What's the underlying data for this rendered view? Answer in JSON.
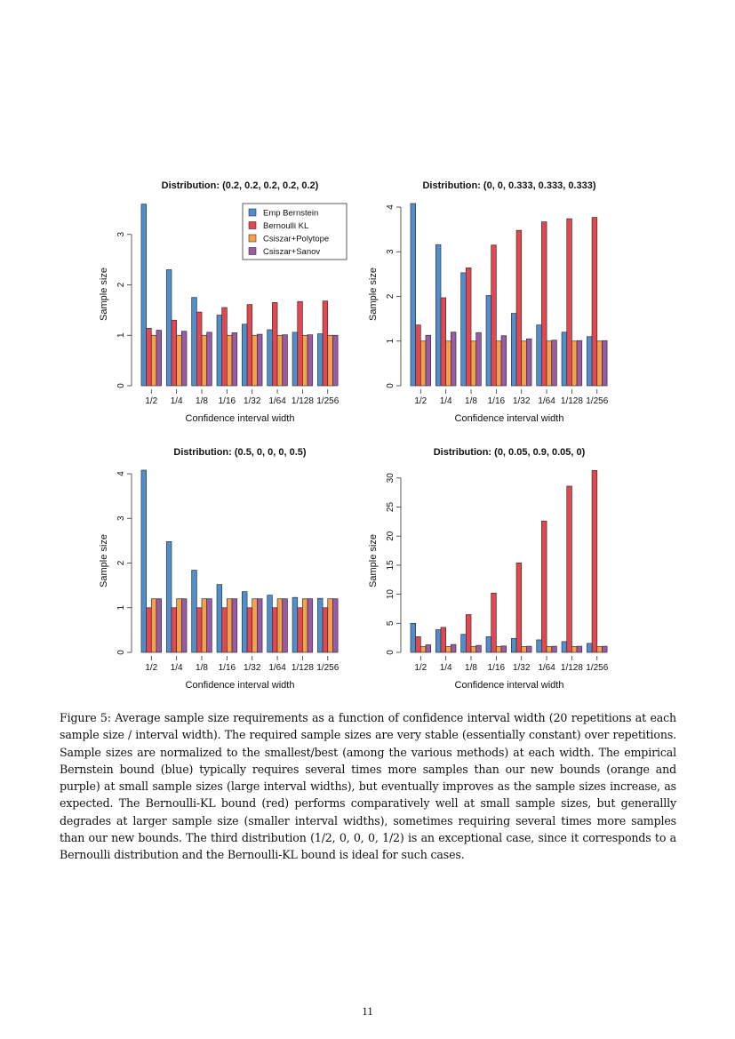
{
  "colors": {
    "Emp Bernstein": "#4f8fce",
    "Bernoulli KL": "#e4474f",
    "Csiszar+Polytope": "#f5a04a",
    "Csiszar+Sanov": "#9a5aa6"
  },
  "chart_data": [
    {
      "type": "bar",
      "title": "Distribution: (0.2, 0.2, 0.2, 0.2, 0.2)",
      "xlabel": "Confidence interval width",
      "ylabel": "Sample size",
      "categories": [
        "1/2",
        "1/4",
        "1/8",
        "1/16",
        "1/32",
        "1/64",
        "1/128",
        "1/256"
      ],
      "yticks": [
        0,
        1,
        2,
        3
      ],
      "ylim": [
        0,
        3.63
      ],
      "legend": "top-right",
      "series": [
        {
          "name": "Emp Bernstein",
          "values": [
            3.6,
            2.3,
            1.75,
            1.4,
            1.22,
            1.11,
            1.06,
            1.03
          ]
        },
        {
          "name": "Bernoulli KL",
          "values": [
            1.14,
            1.3,
            1.46,
            1.55,
            1.61,
            1.65,
            1.67,
            1.68
          ]
        },
        {
          "name": "Csiszar+Polytope",
          "values": [
            1,
            1,
            1,
            1,
            1,
            1,
            1,
            1
          ]
        },
        {
          "name": "Csiszar+Sanov",
          "values": [
            1.1,
            1.08,
            1.06,
            1.05,
            1.02,
            1.01,
            1.01,
            1.0
          ]
        }
      ]
    },
    {
      "type": "bar",
      "title": "Distribution: (0, 0, 0.333, 0.333, 0.333)",
      "xlabel": "Confidence interval width",
      "ylabel": "Sample size",
      "categories": [
        "1/2",
        "1/4",
        "1/8",
        "1/16",
        "1/32",
        "1/64",
        "1/128",
        "1/256"
      ],
      "yticks": [
        0,
        1,
        2,
        3,
        4
      ],
      "ylim": [
        0,
        4.1
      ],
      "series": [
        {
          "name": "Emp Bernstein",
          "values": [
            4.08,
            3.16,
            2.53,
            2.02,
            1.62,
            1.36,
            1.2,
            1.1
          ]
        },
        {
          "name": "Bernoulli KL",
          "values": [
            1.36,
            1.97,
            2.64,
            3.15,
            3.48,
            3.67,
            3.74,
            3.77
          ]
        },
        {
          "name": "Csiszar+Polytope",
          "values": [
            1,
            1,
            1,
            1,
            1,
            1,
            1,
            1
          ]
        },
        {
          "name": "Csiszar+Sanov",
          "values": [
            1.13,
            1.2,
            1.19,
            1.12,
            1.05,
            1.02,
            1.01,
            1.01
          ]
        }
      ]
    },
    {
      "type": "bar",
      "title": "Distribution: (0.5, 0, 0, 0, 0.5)",
      "xlabel": "Confidence interval width",
      "ylabel": "Sample size",
      "categories": [
        "1/2",
        "1/4",
        "1/8",
        "1/16",
        "1/32",
        "1/64",
        "1/128",
        "1/256"
      ],
      "yticks": [
        0,
        1,
        2,
        3,
        4
      ],
      "ylim": [
        0,
        4.1
      ],
      "series": [
        {
          "name": "Emp Bernstein",
          "values": [
            4.08,
            2.48,
            1.84,
            1.52,
            1.36,
            1.28,
            1.23,
            1.21
          ]
        },
        {
          "name": "Bernoulli KL",
          "values": [
            1,
            1,
            1,
            1,
            1,
            1,
            1,
            1
          ]
        },
        {
          "name": "Csiszar+Polytope",
          "values": [
            1.2,
            1.2,
            1.2,
            1.2,
            1.2,
            1.2,
            1.2,
            1.2
          ]
        },
        {
          "name": "Csiszar+Sanov",
          "values": [
            1.2,
            1.2,
            1.2,
            1.2,
            1.2,
            1.2,
            1.2,
            1.2
          ]
        }
      ]
    },
    {
      "type": "bar",
      "title": "Distribution: (0, 0.05, 0.9, 0.05, 0)",
      "xlabel": "Confidence interval width",
      "ylabel": "Sample size",
      "categories": [
        "1/2",
        "1/4",
        "1/8",
        "1/16",
        "1/32",
        "1/64",
        "1/128",
        "1/256"
      ],
      "yticks": [
        0,
        5,
        10,
        15,
        20,
        25,
        30
      ],
      "ylim": [
        0,
        31.5
      ],
      "series": [
        {
          "name": "Emp Bernstein",
          "values": [
            5.0,
            3.9,
            3.1,
            2.7,
            2.4,
            2.15,
            1.85,
            1.55
          ]
        },
        {
          "name": "Bernoulli KL",
          "values": [
            2.7,
            4.3,
            6.5,
            10.2,
            15.4,
            22.6,
            28.6,
            31.3
          ]
        },
        {
          "name": "Csiszar+Polytope",
          "values": [
            1,
            1,
            1,
            1,
            1,
            1,
            1,
            1
          ]
        },
        {
          "name": "Csiszar+Sanov",
          "values": [
            1.3,
            1.35,
            1.2,
            1.1,
            1.05,
            1.05,
            1.05,
            1.05
          ]
        }
      ]
    }
  ],
  "caption": "Figure 5: Average sample size requirements as a function of confidence interval width (20 repetitions at each sample size / interval width). The required sample sizes are very stable (essentially constant) over repetitions. Sample sizes are normalized to the smallest/best (among the various methods) at each width. The empirical Bernstein bound (blue) typically requires several times more samples than our new bounds (orange and purple) at small sample sizes (large interval widths), but eventually improves as the sample sizes increase, as expected. The Bernoulli-KL bound (red) performs comparatively well at small sample sizes, but generallly degrades at larger sample size (smaller interval widths), sometimes requiring several times more samples than our new bounds. The third distribution (1/2, 0, 0, 0, 1/2) is an exceptional case, since it corresponds to a Bernoulli distribution and the Bernoulli-KL bound is ideal for such cases.",
  "page_number": "11"
}
